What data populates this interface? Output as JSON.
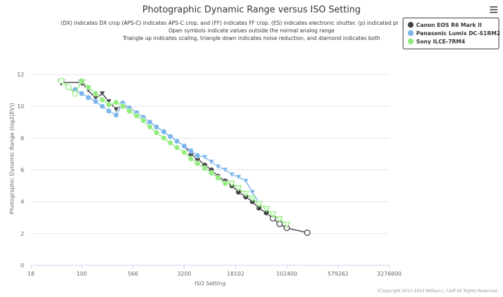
{
  "menu_icon": "hamburger-menu-icon",
  "chart_data": {
    "type": "line",
    "title": "Photographic Dynamic Range versus ISO Setting",
    "subtitle_lines": [
      "(DX) indicates DX crop (APS-C) indicates APS-C crop, and (FF) indicates FF crop. (ES) indicates electronic shutter. (p) indicated pr",
      "Open symbols indicate values outside the normal analog range",
      "Triangle up indicates scaling, triangle down indicates noise reduction, and diamond indicates both"
    ],
    "xlabel": "ISO Setting",
    "ylabel": "Photographic Dynamic Range (log2(EV))",
    "xscale": "log",
    "xlim": [
      18,
      3276800
    ],
    "ylim": [
      0,
      13
    ],
    "x_ticks": [
      {
        "value": 18,
        "label": "18"
      },
      {
        "value": 100,
        "label": "100"
      },
      {
        "value": 566,
        "label": "566"
      },
      {
        "value": 3200,
        "label": "3200"
      },
      {
        "value": 18102,
        "label": "18102"
      },
      {
        "value": 102400,
        "label": "102400"
      },
      {
        "value": 579262,
        "label": "579262"
      },
      {
        "value": 3276800,
        "label": "3276800"
      }
    ],
    "y_ticks": [
      0,
      2,
      4,
      6,
      8,
      10,
      12
    ],
    "grid": "horizontal",
    "legend_position": "top-right",
    "credit": "(C)opyright 2012-2024 William J. Claff All Rights Reserved.",
    "series": [
      {
        "name": "Canon EOS R6 Mark II",
        "color": "#434348",
        "points": [
          {
            "x": 50,
            "y": 11.5,
            "m": "tdo"
          },
          {
            "x": 100,
            "y": 11.5,
            "m": "tdo"
          },
          {
            "x": 125,
            "y": 11.0,
            "m": "td"
          },
          {
            "x": 160,
            "y": 10.5,
            "m": "td"
          },
          {
            "x": 200,
            "y": 10.8,
            "m": "td"
          },
          {
            "x": 250,
            "y": 10.3,
            "m": "td"
          },
          {
            "x": 320,
            "y": 9.8,
            "m": "td"
          },
          {
            "x": 400,
            "y": 10.1,
            "m": "td"
          },
          {
            "x": 500,
            "y": 9.9,
            "m": "c"
          },
          {
            "x": 640,
            "y": 9.6,
            "m": "c"
          },
          {
            "x": 800,
            "y": 9.3,
            "m": "c"
          },
          {
            "x": 1000,
            "y": 9.0,
            "m": "c"
          },
          {
            "x": 1250,
            "y": 8.7,
            "m": "c"
          },
          {
            "x": 1600,
            "y": 8.4,
            "m": "c"
          },
          {
            "x": 2000,
            "y": 8.1,
            "m": "c"
          },
          {
            "x": 2500,
            "y": 7.8,
            "m": "c"
          },
          {
            "x": 3200,
            "y": 7.5,
            "m": "c"
          },
          {
            "x": 4000,
            "y": 7.0,
            "m": "c"
          },
          {
            "x": 5000,
            "y": 6.7,
            "m": "c"
          },
          {
            "x": 6400,
            "y": 6.3,
            "m": "c"
          },
          {
            "x": 8000,
            "y": 6.0,
            "m": "c"
          },
          {
            "x": 10000,
            "y": 5.6,
            "m": "c"
          },
          {
            "x": 12800,
            "y": 5.3,
            "m": "c"
          },
          {
            "x": 16000,
            "y": 5.0,
            "m": "c"
          },
          {
            "x": 20000,
            "y": 4.6,
            "m": "c"
          },
          {
            "x": 25600,
            "y": 4.3,
            "m": "c"
          },
          {
            "x": 32000,
            "y": 4.0,
            "m": "c"
          },
          {
            "x": 40000,
            "y": 3.6,
            "m": "c"
          },
          {
            "x": 51200,
            "y": 3.3,
            "m": "c"
          },
          {
            "x": 64000,
            "y": 2.95,
            "m": "co"
          },
          {
            "x": 80000,
            "y": 2.6,
            "m": "co"
          },
          {
            "x": 102400,
            "y": 2.35,
            "m": "co"
          },
          {
            "x": 204800,
            "y": 2.05,
            "m": "co"
          }
        ]
      },
      {
        "name": "Panasonic Lumix DC-S1RM2",
        "color": "#7cb5ec",
        "points": [
          {
            "x": 80,
            "y": 11.05,
            "m": "c"
          },
          {
            "x": 100,
            "y": 10.8,
            "m": "c"
          },
          {
            "x": 125,
            "y": 10.55,
            "m": "c"
          },
          {
            "x": 160,
            "y": 10.3,
            "m": "c"
          },
          {
            "x": 200,
            "y": 10.0,
            "m": "c"
          },
          {
            "x": 250,
            "y": 9.7,
            "m": "c"
          },
          {
            "x": 320,
            "y": 9.45,
            "m": "c"
          },
          {
            "x": 400,
            "y": 10.2,
            "m": "c"
          },
          {
            "x": 500,
            "y": 9.9,
            "m": "c"
          },
          {
            "x": 640,
            "y": 9.6,
            "m": "c"
          },
          {
            "x": 800,
            "y": 9.3,
            "m": "c"
          },
          {
            "x": 1000,
            "y": 9.0,
            "m": "c"
          },
          {
            "x": 1250,
            "y": 8.7,
            "m": "c"
          },
          {
            "x": 1600,
            "y": 8.4,
            "m": "c"
          },
          {
            "x": 2000,
            "y": 8.1,
            "m": "c"
          },
          {
            "x": 2500,
            "y": 7.8,
            "m": "c"
          },
          {
            "x": 3200,
            "y": 7.5,
            "m": "c"
          },
          {
            "x": 4000,
            "y": 7.2,
            "m": "c"
          },
          {
            "x": 5000,
            "y": 6.9,
            "m": "c"
          },
          {
            "x": 6400,
            "y": 6.8,
            "m": "td"
          },
          {
            "x": 8000,
            "y": 6.5,
            "m": "td"
          },
          {
            "x": 10000,
            "y": 6.2,
            "m": "td"
          },
          {
            "x": 12800,
            "y": 6.0,
            "m": "td"
          },
          {
            "x": 16000,
            "y": 5.7,
            "m": "td"
          },
          {
            "x": 20000,
            "y": 5.55,
            "m": "td"
          },
          {
            "x": 25600,
            "y": 5.3,
            "m": "td"
          },
          {
            "x": 32000,
            "y": 4.6,
            "m": "td"
          },
          {
            "x": 40000,
            "y": 3.9,
            "m": "td"
          }
        ]
      },
      {
        "name": "Sony ILCE-7RM4",
        "color": "#90ed7d",
        "points": [
          {
            "x": 50,
            "y": 11.6,
            "m": "co"
          },
          {
            "x": 64,
            "y": 11.2,
            "m": "co"
          },
          {
            "x": 80,
            "y": 10.8,
            "m": "co"
          },
          {
            "x": 100,
            "y": 11.6,
            "m": "c"
          },
          {
            "x": 125,
            "y": 11.2,
            "m": "c"
          },
          {
            "x": 160,
            "y": 10.8,
            "m": "c"
          },
          {
            "x": 200,
            "y": 10.4,
            "m": "c"
          },
          {
            "x": 250,
            "y": 10.1,
            "m": "c"
          },
          {
            "x": 320,
            "y": 10.25,
            "m": "c"
          },
          {
            "x": 400,
            "y": 10.0,
            "m": "c"
          },
          {
            "x": 500,
            "y": 9.7,
            "m": "c"
          },
          {
            "x": 640,
            "y": 9.4,
            "m": "c"
          },
          {
            "x": 800,
            "y": 9.1,
            "m": "c"
          },
          {
            "x": 1000,
            "y": 8.7,
            "m": "c"
          },
          {
            "x": 1250,
            "y": 8.35,
            "m": "c"
          },
          {
            "x": 1600,
            "y": 8.0,
            "m": "c"
          },
          {
            "x": 2000,
            "y": 7.7,
            "m": "c"
          },
          {
            "x": 2500,
            "y": 7.4,
            "m": "c"
          },
          {
            "x": 3200,
            "y": 7.1,
            "m": "c"
          },
          {
            "x": 4000,
            "y": 6.7,
            "m": "c"
          },
          {
            "x": 5000,
            "y": 6.4,
            "m": "c"
          },
          {
            "x": 6400,
            "y": 6.1,
            "m": "c"
          },
          {
            "x": 8000,
            "y": 5.8,
            "m": "c"
          },
          {
            "x": 10000,
            "y": 5.5,
            "m": "c"
          },
          {
            "x": 12800,
            "y": 5.15,
            "m": "c"
          },
          {
            "x": 16000,
            "y": 5.15,
            "m": "tdo"
          },
          {
            "x": 20000,
            "y": 4.85,
            "m": "tdo"
          },
          {
            "x": 25600,
            "y": 4.5,
            "m": "tdo"
          },
          {
            "x": 32000,
            "y": 4.2,
            "m": "tdo"
          },
          {
            "x": 40000,
            "y": 3.85,
            "m": "tdo"
          },
          {
            "x": 51200,
            "y": 3.55,
            "m": "tdo"
          },
          {
            "x": 64000,
            "y": 3.2,
            "m": "tdo"
          },
          {
            "x": 80000,
            "y": 2.9,
            "m": "tdo"
          },
          {
            "x": 102400,
            "y": 2.55,
            "m": "tdo"
          }
        ]
      }
    ]
  }
}
